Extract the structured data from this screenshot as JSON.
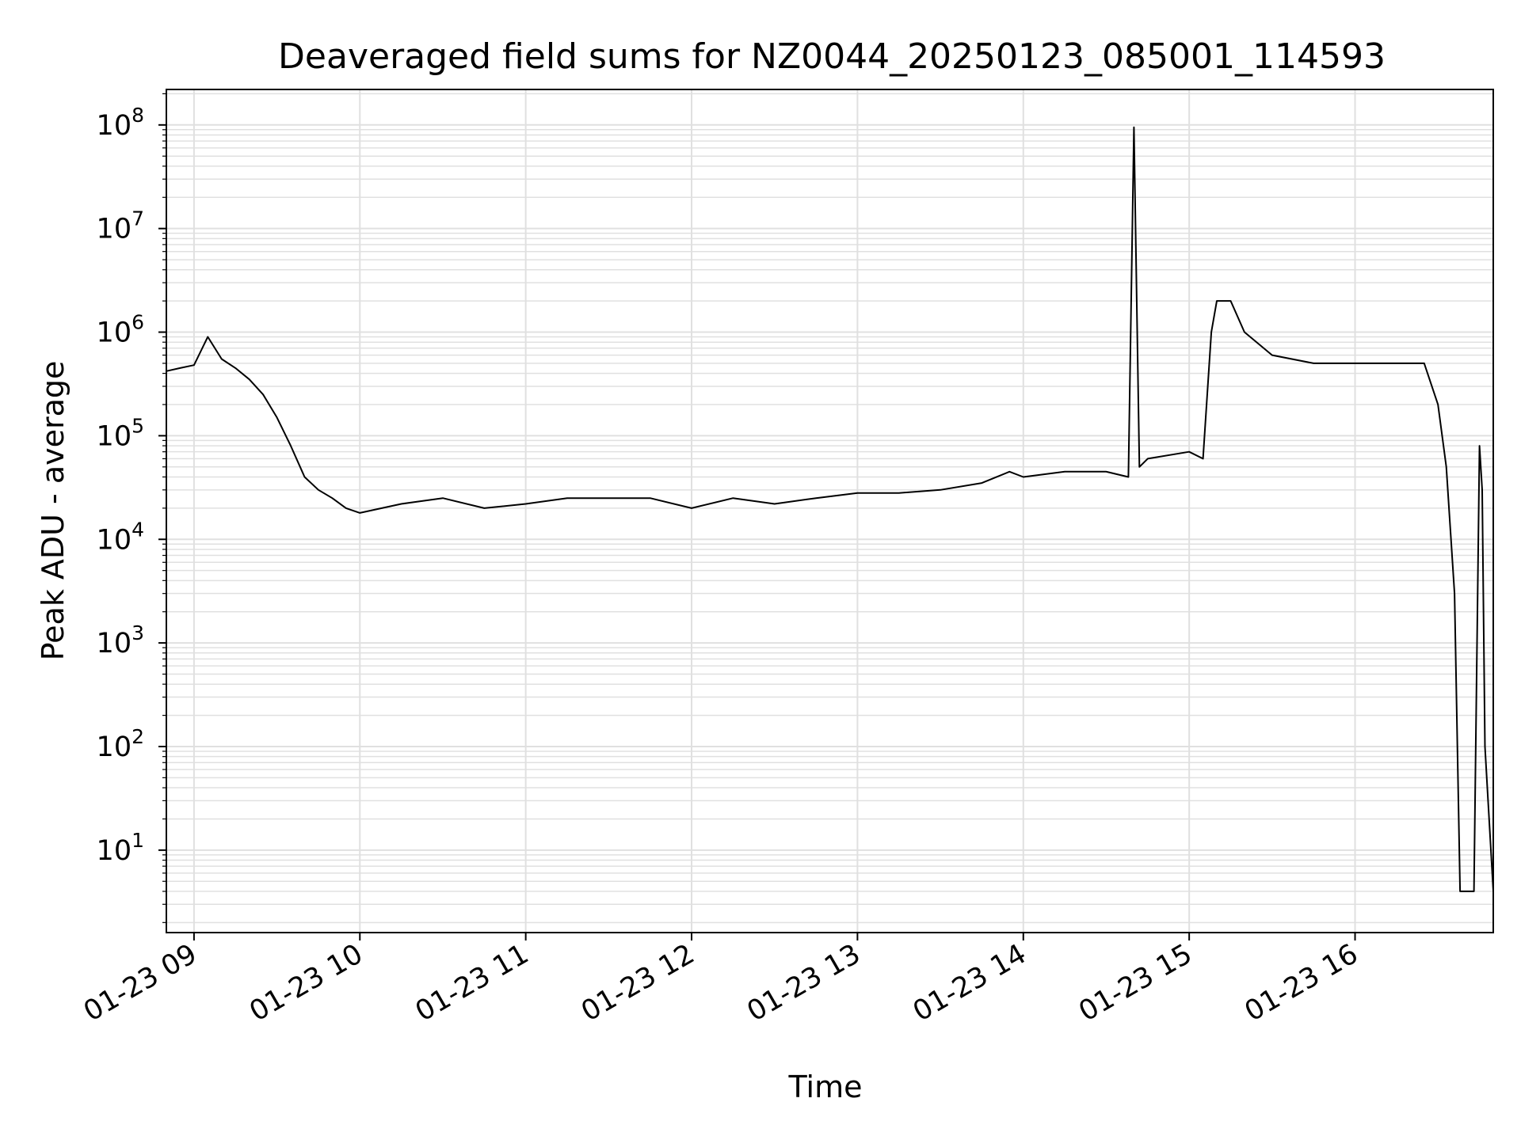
{
  "chart_data": {
    "type": "line",
    "title": "Deaveraged field sums for NZ0044_20250123_085001_114593",
    "xlabel": "Time",
    "ylabel": "Peak ADU - average",
    "yscale": "log",
    "grid": true,
    "line_color": "#000000",
    "grid_color": "#e0e0e0",
    "xlim": [
      "2025-01-23 08:50",
      "2025-01-23 16:50"
    ],
    "ylim": [
      1.6,
      220000000
    ],
    "x_tick_labels": [
      "01-23 09",
      "01-23 10",
      "01-23 11",
      "01-23 12",
      "01-23 13",
      "01-23 14",
      "01-23 15",
      "01-23 16"
    ],
    "x_ticks": [
      "2025-01-23 09:00",
      "2025-01-23 10:00",
      "2025-01-23 11:00",
      "2025-01-23 12:00",
      "2025-01-23 13:00",
      "2025-01-23 14:00",
      "2025-01-23 15:00",
      "2025-01-23 16:00"
    ],
    "y_ticks": [
      {
        "value": 10,
        "base": "10",
        "exp": "1"
      },
      {
        "value": 100,
        "base": "10",
        "exp": "2"
      },
      {
        "value": 1000,
        "base": "10",
        "exp": "3"
      },
      {
        "value": 10000,
        "base": "10",
        "exp": "4"
      },
      {
        "value": 100000,
        "base": "10",
        "exp": "5"
      },
      {
        "value": 1000000,
        "base": "10",
        "exp": "6"
      },
      {
        "value": 10000000,
        "base": "10",
        "exp": "7"
      },
      {
        "value": 100000000,
        "base": "10",
        "exp": "8"
      }
    ],
    "series": [
      {
        "x": [
          "2025-01-23 08:50",
          "2025-01-23 08:55",
          "2025-01-23 09:00",
          "2025-01-23 09:05",
          "2025-01-23 09:10",
          "2025-01-23 09:15",
          "2025-01-23 09:20",
          "2025-01-23 09:25",
          "2025-01-23 09:30",
          "2025-01-23 09:35",
          "2025-01-23 09:40",
          "2025-01-23 09:45",
          "2025-01-23 09:50",
          "2025-01-23 09:55",
          "2025-01-23 10:00",
          "2025-01-23 10:15",
          "2025-01-23 10:30",
          "2025-01-23 10:45",
          "2025-01-23 11:00",
          "2025-01-23 11:15",
          "2025-01-23 11:30",
          "2025-01-23 11:45",
          "2025-01-23 12:00",
          "2025-01-23 12:15",
          "2025-01-23 12:30",
          "2025-01-23 12:45",
          "2025-01-23 13:00",
          "2025-01-23 13:15",
          "2025-01-23 13:30",
          "2025-01-23 13:45",
          "2025-01-23 13:55",
          "2025-01-23 14:00",
          "2025-01-23 14:15",
          "2025-01-23 14:30",
          "2025-01-23 14:38",
          "2025-01-23 14:40",
          "2025-01-23 14:42",
          "2025-01-23 14:45",
          "2025-01-23 15:00",
          "2025-01-23 15:05",
          "2025-01-23 15:08",
          "2025-01-23 15:10",
          "2025-01-23 15:15",
          "2025-01-23 15:20",
          "2025-01-23 15:30",
          "2025-01-23 15:45",
          "2025-01-23 16:00",
          "2025-01-23 16:15",
          "2025-01-23 16:25",
          "2025-01-23 16:30",
          "2025-01-23 16:33",
          "2025-01-23 16:36",
          "2025-01-23 16:38",
          "2025-01-23 16:40",
          "2025-01-23 16:43",
          "2025-01-23 16:45",
          "2025-01-23 16:46",
          "2025-01-23 16:47",
          "2025-01-23 16:50"
        ],
        "y": [
          420000,
          450000,
          480000,
          900000,
          550000,
          450000,
          350000,
          250000,
          150000,
          80000,
          40000,
          30000,
          25000,
          20000,
          18000,
          22000,
          25000,
          20000,
          22000,
          25000,
          25000,
          25000,
          20000,
          25000,
          22000,
          25000,
          28000,
          28000,
          30000,
          35000,
          45000,
          40000,
          45000,
          45000,
          40000,
          95000000,
          50000,
          60000,
          70000,
          60000,
          1000000,
          2000000,
          2000000,
          1000000,
          600000,
          500000,
          500000,
          500000,
          500000,
          200000,
          50000,
          3000,
          4,
          4,
          4,
          80000,
          30000,
          100,
          4
        ]
      }
    ]
  }
}
